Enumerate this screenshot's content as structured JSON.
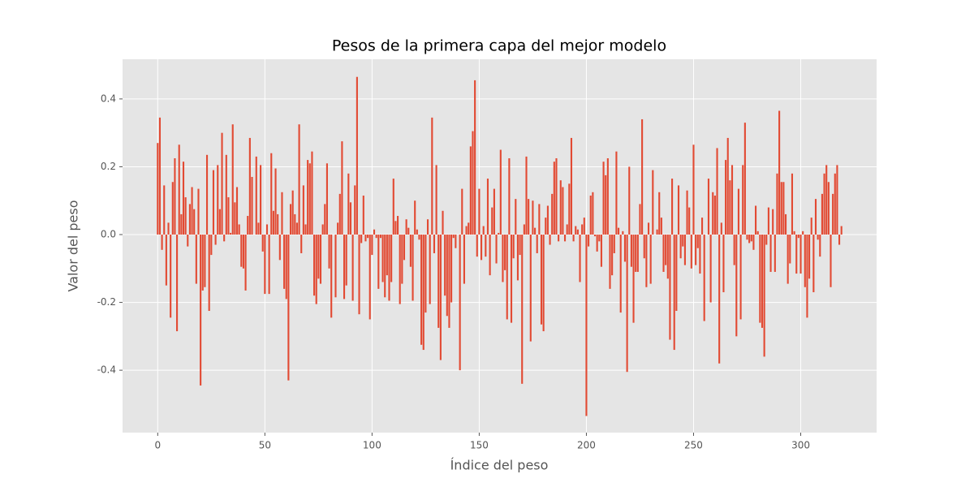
{
  "chart_data": {
    "type": "bar",
    "title": "Pesos de la primera capa del mejor modelo",
    "xlabel": "Índice del peso",
    "ylabel": "Valor del peso",
    "color": "#e24a33",
    "grid": true,
    "xlim": [
      -16.4,
      335.4
    ],
    "ylim": [
      -0.584,
      0.517
    ],
    "xticks": [
      0,
      50,
      100,
      150,
      200,
      250,
      300
    ],
    "yticks": [
      -0.4,
      -0.2,
      {
        "value": 0,
        "label": "0.0"
      },
      0.2,
      0.4
    ],
    "values": [
      0.27,
      0.345,
      -0.045,
      0.145,
      -0.15,
      0.035,
      -0.245,
      0.155,
      0.225,
      -0.285,
      0.265,
      0.06,
      0.215,
      0.11,
      -0.035,
      0.09,
      0.14,
      0.075,
      -0.145,
      0.135,
      -0.445,
      -0.165,
      -0.155,
      0.235,
      -0.225,
      -0.06,
      0.19,
      -0.03,
      0.205,
      0.075,
      0.3,
      -0.02,
      0.235,
      0.11,
      0.005,
      0.325,
      0.095,
      0.14,
      0.03,
      -0.095,
      -0.1,
      -0.165,
      0.055,
      0.285,
      0.17,
      0.0,
      0.23,
      0.035,
      0.205,
      -0.05,
      -0.175,
      0.03,
      -0.175,
      0.24,
      0.07,
      0.195,
      0.06,
      -0.075,
      0.125,
      -0.16,
      -0.19,
      -0.43,
      0.09,
      0.13,
      0.06,
      0.035,
      0.325,
      -0.055,
      0.145,
      0.03,
      0.22,
      0.21,
      0.245,
      -0.18,
      -0.205,
      -0.13,
      -0.145,
      0.03,
      0.09,
      0.21,
      -0.1,
      -0.245,
      0.0,
      -0.185,
      0.035,
      0.12,
      0.275,
      -0.19,
      -0.15,
      0.18,
      0.095,
      -0.195,
      0.145,
      0.465,
      -0.235,
      -0.025,
      0.115,
      -0.02,
      -0.01,
      -0.25,
      -0.06,
      0.015,
      -0.01,
      -0.16,
      -0.01,
      -0.14,
      -0.185,
      -0.12,
      -0.195,
      -0.14,
      0.165,
      0.04,
      0.055,
      -0.205,
      -0.145,
      -0.075,
      0.045,
      0.02,
      -0.095,
      -0.195,
      0.1,
      0.015,
      -0.015,
      -0.325,
      -0.34,
      -0.23,
      0.045,
      -0.205,
      0.345,
      -0.055,
      0.205,
      -0.275,
      -0.37,
      0.07,
      -0.18,
      -0.24,
      -0.275,
      -0.2,
      -0.01,
      -0.04,
      0.0,
      -0.4,
      0.135,
      -0.145,
      0.025,
      0.035,
      0.26,
      0.305,
      0.455,
      -0.065,
      0.135,
      -0.075,
      0.025,
      -0.065,
      0.165,
      -0.12,
      0.08,
      0.135,
      -0.085,
      0.005,
      0.25,
      -0.14,
      -0.105,
      -0.25,
      0.225,
      -0.26,
      -0.07,
      0.105,
      -0.135,
      -0.06,
      -0.44,
      0.03,
      0.23,
      0.105,
      -0.315,
      0.1,
      0.02,
      -0.055,
      0.09,
      -0.265,
      -0.285,
      0.05,
      0.085,
      -0.03,
      0.12,
      0.215,
      0.225,
      -0.02,
      0.16,
      0.14,
      -0.02,
      0.03,
      0.15,
      0.285,
      -0.02,
      0.025,
      0.015,
      -0.14,
      0.03,
      0.05,
      -0.535,
      -0.035,
      0.115,
      0.125,
      -0.005,
      -0.05,
      -0.02,
      -0.095,
      0.215,
      0.175,
      0.225,
      -0.16,
      -0.12,
      -0.055,
      0.245,
      0.02,
      -0.23,
      0.01,
      -0.08,
      -0.405,
      0.2,
      -0.095,
      -0.26,
      -0.11,
      -0.11,
      0.09,
      0.34,
      -0.07,
      -0.155,
      0.035,
      -0.145,
      0.19,
      0.0,
      0.015,
      0.125,
      0.05,
      -0.11,
      -0.09,
      -0.13,
      -0.31,
      0.165,
      -0.34,
      -0.225,
      0.145,
      -0.07,
      -0.035,
      -0.09,
      0.13,
      0.08,
      -0.1,
      0.265,
      -0.09,
      -0.04,
      -0.115,
      0.05,
      -0.255,
      0.0,
      0.165,
      -0.2,
      0.125,
      0.115,
      0.255,
      -0.38,
      0.035,
      -0.17,
      0.22,
      0.285,
      0.16,
      0.205,
      -0.09,
      -0.3,
      0.135,
      -0.25,
      0.205,
      0.33,
      -0.015,
      -0.025,
      -0.02,
      -0.045,
      0.085,
      0.01,
      -0.26,
      -0.275,
      -0.36,
      -0.03,
      0.08,
      -0.11,
      0.075,
      -0.11,
      0.18,
      0.365,
      0.155,
      0.155,
      0.06,
      -0.145,
      -0.085,
      0.18,
      0.01,
      -0.115,
      -0.01,
      -0.115,
      0.01,
      -0.155,
      -0.245,
      -0.13,
      0.05,
      -0.17,
      0.105,
      -0.015,
      -0.065,
      0.12,
      0.18,
      0.205,
      0.155,
      -0.155,
      0.12,
      0.18,
      0.205,
      -0.03,
      0.025
    ]
  }
}
